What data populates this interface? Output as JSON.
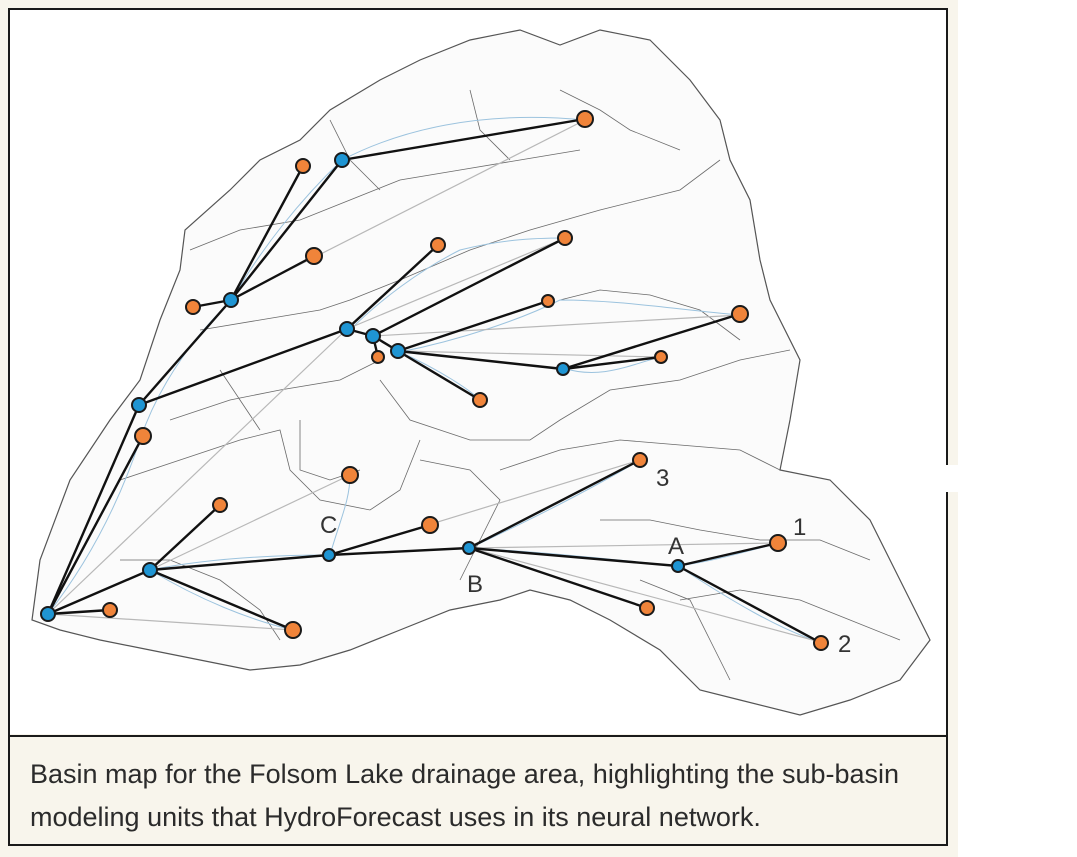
{
  "caption": "Basin map for the Folsom Lake drainage area, highlighting the sub-basin modeling units that HydroForecast uses in its neural network.",
  "map": {
    "labels": {
      "a": "A",
      "b": "B",
      "c": "C",
      "one": "1",
      "two": "2",
      "three": "3"
    },
    "colors": {
      "junction_node": "#1f95d3",
      "subbasin_node": "#f0843a",
      "connector": "#111111",
      "boundary": "#555555",
      "stream": "#9cc3de"
    }
  }
}
